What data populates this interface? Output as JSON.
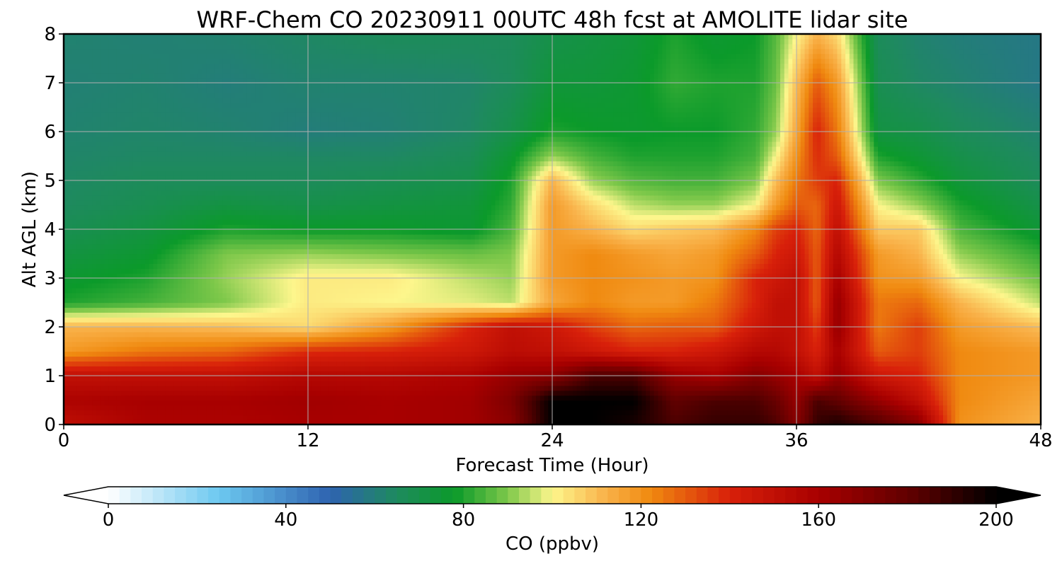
{
  "chart_data": {
    "type": "heatmap",
    "title": "WRF-Chem CO  20230911 00UTC 48h fcst at AMOLITE lidar site",
    "xlabel": "Forecast Time (Hour)",
    "ylabel": "Alt AGL (km)",
    "xlim": [
      0,
      48
    ],
    "ylim": [
      0,
      8
    ],
    "x_ticks": [
      0,
      12,
      24,
      36,
      48
    ],
    "y_ticks": [
      0,
      1,
      2,
      3,
      4,
      5,
      6,
      7,
      8
    ],
    "grid": true,
    "colorbar": {
      "label": "CO  (ppbv)",
      "range": [
        0,
        200
      ],
      "ticks": [
        0,
        40,
        80,
        120,
        160,
        200
      ],
      "extend": "both",
      "orientation": "horizontal",
      "colors": [
        "#ffffff",
        "#6cc8f0",
        "#2e63b0",
        "#1e8a5e",
        "#0b9a2a",
        "#7ec84a",
        "#fdf68c",
        "#f9b24a",
        "#f08a10",
        "#d8200a",
        "#a80000",
        "#5a0000",
        "#000000"
      ],
      "color_stops": [
        0,
        25,
        50,
        65,
        78,
        90,
        100,
        112,
        122,
        140,
        160,
        182,
        200
      ]
    },
    "x": [
      0,
      4,
      8,
      12,
      16,
      20,
      22,
      24,
      26,
      28,
      30,
      32,
      34,
      35,
      36,
      37,
      38,
      40,
      42,
      44,
      48
    ],
    "y": [
      0,
      0.5,
      1,
      1.5,
      2,
      2.5,
      3,
      3.5,
      4,
      4.5,
      5,
      5.5,
      6,
      7,
      8
    ],
    "z": [
      [
        150,
        158,
        158,
        160,
        160,
        162,
        168,
        200,
        200,
        195,
        185,
        190,
        190,
        185,
        170,
        190,
        195,
        185,
        170,
        120,
        112
      ],
      [
        158,
        160,
        160,
        162,
        160,
        162,
        172,
        200,
        200,
        200,
        180,
        185,
        185,
        178,
        165,
        185,
        180,
        165,
        150,
        122,
        115
      ],
      [
        150,
        150,
        150,
        155,
        155,
        158,
        165,
        168,
        185,
        185,
        165,
        160,
        170,
        165,
        160,
        150,
        165,
        145,
        140,
        122,
        118
      ],
      [
        118,
        125,
        128,
        138,
        140,
        145,
        152,
        150,
        145,
        140,
        140,
        145,
        155,
        155,
        150,
        140,
        160,
        130,
        135,
        122,
        118
      ],
      [
        112,
        112,
        110,
        105,
        118,
        140,
        150,
        145,
        135,
        128,
        130,
        130,
        145,
        150,
        150,
        135,
        165,
        125,
        135,
        118,
        110
      ],
      [
        80,
        84,
        90,
        102,
        100,
        98,
        95,
        115,
        122,
        118,
        118,
        125,
        140,
        150,
        150,
        130,
        165,
        125,
        128,
        112,
        95
      ],
      [
        76,
        80,
        92,
        102,
        102,
        95,
        92,
        118,
        122,
        120,
        118,
        120,
        140,
        145,
        150,
        130,
        160,
        120,
        118,
        100,
        88
      ],
      [
        72,
        76,
        90,
        92,
        90,
        88,
        90,
        118,
        122,
        118,
        115,
        118,
        130,
        140,
        145,
        130,
        155,
        118,
        112,
        92,
        82
      ],
      [
        68,
        72,
        80,
        78,
        78,
        76,
        85,
        118,
        112,
        105,
        108,
        110,
        122,
        135,
        140,
        128,
        150,
        108,
        108,
        85,
        75
      ],
      [
        65,
        68,
        72,
        70,
        72,
        74,
        82,
        118,
        105,
        95,
        92,
        92,
        100,
        118,
        130,
        128,
        145,
        100,
        92,
        80,
        70
      ],
      [
        64,
        66,
        66,
        66,
        68,
        70,
        80,
        112,
        92,
        86,
        84,
        84,
        90,
        110,
        125,
        135,
        140,
        90,
        82,
        74,
        66
      ],
      [
        63,
        64,
        64,
        64,
        64,
        67,
        76,
        92,
        84,
        80,
        80,
        80,
        84,
        100,
        120,
        138,
        130,
        80,
        75,
        70,
        64
      ],
      [
        62,
        63,
        62,
        60,
        61,
        64,
        70,
        80,
        78,
        77,
        78,
        78,
        82,
        92,
        115,
        140,
        125,
        72,
        70,
        66,
        62
      ],
      [
        61,
        62,
        60,
        62,
        62,
        63,
        66,
        74,
        74,
        76,
        82,
        80,
        80,
        88,
        110,
        130,
        118,
        68,
        64,
        62,
        58
      ],
      [
        62,
        61,
        62,
        64,
        66,
        66,
        66,
        70,
        72,
        74,
        80,
        76,
        78,
        86,
        100,
        112,
        105,
        66,
        62,
        60,
        58
      ]
    ]
  }
}
